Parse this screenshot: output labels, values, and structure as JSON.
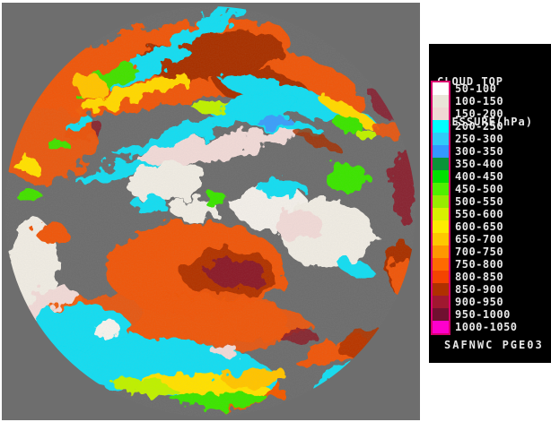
{
  "window": {
    "background_color": "#FFFFFF"
  },
  "satellite_view": {
    "background_color": "#6E6E6E",
    "palette": {
      "clear_gray": "#6E6E6E",
      "high_cloud_white": "#EFEBE2",
      "high_cloud_pink": "#F0D9D6",
      "cirrus_cyan": "#12DCF0",
      "mid_blue": "#3E9EF8",
      "mid_green": "#3CE400",
      "mid_chartreuse": "#BFF000",
      "low_yellow": "#FFE000",
      "low_gold": "#FFC400",
      "low_orange": "#EE5808",
      "low_rust": "#B03000",
      "low_maroon": "#8C1C2C"
    }
  },
  "legend": {
    "title_line1": "CLOUD TOP",
    "title_line2": "PRESSURE(hPa)",
    "footer": "SAFNWC PGE03",
    "background": "#000000",
    "border_color": "#D8006C",
    "text_color": "#E8E8E8",
    "bands": [
      {
        "range": "50-100",
        "color": "#FFFFFF"
      },
      {
        "range": "100-150",
        "color": "#EAE5D8"
      },
      {
        "range": "150-200",
        "color": "#F0D8D4"
      },
      {
        "range": "200-250",
        "color": "#00FFFF"
      },
      {
        "range": "250-300",
        "color": "#30CCF8"
      },
      {
        "range": "300-350",
        "color": "#3399FF"
      },
      {
        "range": "350-400",
        "color": "#0A9438"
      },
      {
        "range": "400-450",
        "color": "#00E000"
      },
      {
        "range": "450-500",
        "color": "#50F000"
      },
      {
        "range": "500-550",
        "color": "#98EC00"
      },
      {
        "range": "550-600",
        "color": "#D8F000"
      },
      {
        "range": "600-650",
        "color": "#FFEC00"
      },
      {
        "range": "650-700",
        "color": "#FFC800"
      },
      {
        "range": "700-750",
        "color": "#FF9800"
      },
      {
        "range": "750-800",
        "color": "#FF6A00"
      },
      {
        "range": "800-850",
        "color": "#F44400"
      },
      {
        "range": "850-900",
        "color": "#B03000"
      },
      {
        "range": "900-950",
        "color": "#A01830"
      },
      {
        "range": "950-1000",
        "color": "#701030"
      },
      {
        "range": "1000-1050",
        "color": "#FF00CC"
      }
    ]
  }
}
